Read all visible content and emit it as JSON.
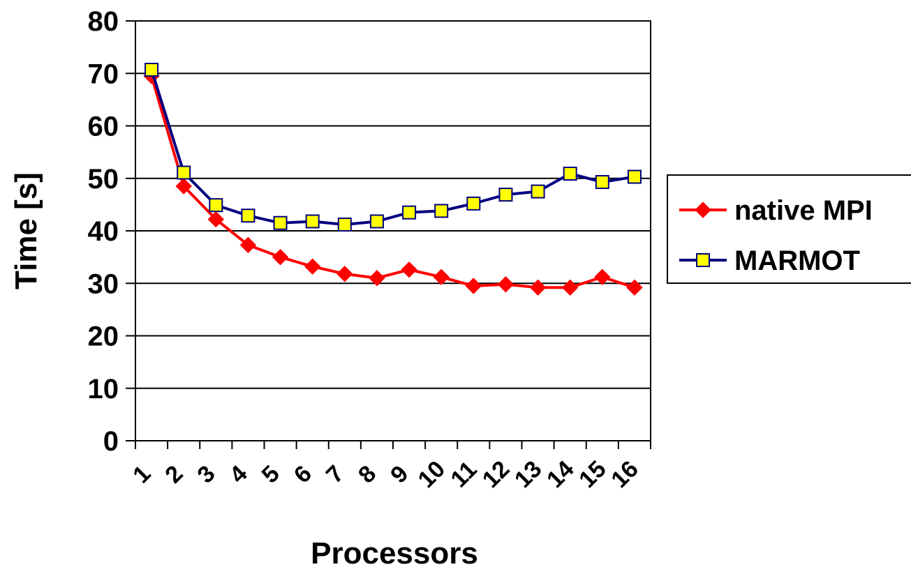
{
  "chart_data": {
    "type": "line",
    "title": "",
    "xlabel": "Processors",
    "ylabel": "Time [s]",
    "ylim": [
      0,
      80
    ],
    "yticks": [
      0,
      10,
      20,
      30,
      40,
      50,
      60,
      70,
      80
    ],
    "categories": [
      "1",
      "2",
      "3",
      "4",
      "5",
      "6",
      "7",
      "8",
      "9",
      "10",
      "11",
      "12",
      "13",
      "14",
      "15",
      "16"
    ],
    "grid": "horizontal",
    "legend_position": "right",
    "series": [
      {
        "name": "native MPI",
        "color": "#ff0000",
        "marker": "diamond",
        "values": [
          69.5,
          48.5,
          42.2,
          37.3,
          35.0,
          33.2,
          31.8,
          31.0,
          32.6,
          31.2,
          29.5,
          29.8,
          29.2,
          29.2,
          31.2,
          29.2
        ]
      },
      {
        "name": "MARMOT",
        "color": "#000080",
        "marker_fill": "#ffff00",
        "marker": "square",
        "values": [
          70.7,
          51.1,
          44.9,
          42.9,
          41.5,
          41.8,
          41.2,
          41.8,
          43.5,
          43.8,
          45.2,
          46.9,
          47.5,
          50.9,
          49.3,
          50.3
        ]
      }
    ]
  }
}
